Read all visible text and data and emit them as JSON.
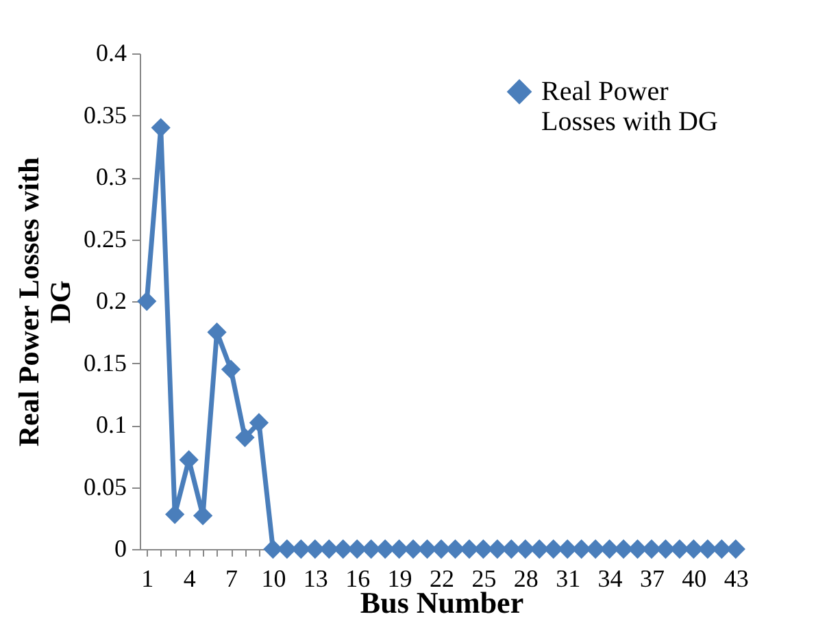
{
  "chart_data": {
    "type": "line",
    "xlabel": "Bus Number",
    "ylabel": "Real Power Losses with DG",
    "categories": [
      "1",
      null,
      null,
      "4",
      null,
      null,
      "7",
      null,
      null,
      "10",
      null,
      null,
      "13",
      null,
      null,
      "16",
      null,
      null,
      "19",
      null,
      null,
      "22",
      null,
      null,
      "25",
      null,
      null,
      "28",
      null,
      null,
      "31",
      null,
      null,
      "34",
      null,
      null,
      "37",
      null,
      null,
      "40",
      null,
      null,
      "43"
    ],
    "series": [
      {
        "name": "Real Power Losses with DG",
        "color": "#4a7ebb",
        "values": [
          0.2,
          0.34,
          0.028,
          0.072,
          0.027,
          0.175,
          0.145,
          0.09,
          0.102,
          0,
          0,
          0,
          0,
          0,
          0,
          0,
          0,
          0,
          0,
          0,
          0,
          0,
          0,
          0,
          0,
          0,
          0,
          0,
          0,
          0,
          0,
          0,
          0,
          0,
          0,
          0,
          0,
          0,
          0,
          0,
          0,
          0,
          0
        ]
      }
    ],
    "ylim": [
      0,
      0.4
    ],
    "yticks": [
      0,
      0.05,
      0.1,
      0.15,
      0.2,
      0.25,
      0.3,
      0.35,
      0.4
    ],
    "grid": false,
    "legend": "top right",
    "marker": "diamond",
    "line_style": "solid"
  }
}
